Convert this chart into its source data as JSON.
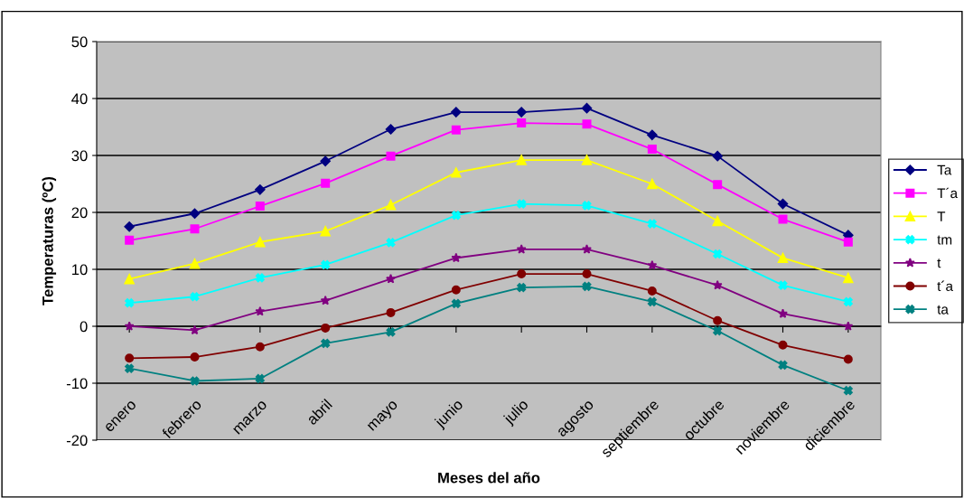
{
  "chart_data": {
    "type": "line",
    "xlabel": "Meses del año",
    "ylabel": "Temperaturas (ºC)",
    "categories": [
      "enero",
      "febrero",
      "marzo",
      "abril",
      "mayo",
      "junio",
      "julio",
      "agosto",
      "septiembre",
      "octubre",
      "noviembre",
      "diciembre"
    ],
    "ylim": [
      -20,
      50
    ],
    "yticks": [
      -20,
      -10,
      0,
      10,
      20,
      30,
      40,
      50
    ],
    "grid": "y",
    "legend": "right",
    "series": [
      {
        "name": "Ta",
        "color": "#000080",
        "marker": "diamond",
        "values": [
          17.5,
          19.8,
          24,
          29,
          34.6,
          37.6,
          37.6,
          38.3,
          33.6,
          29.9,
          21.5,
          16
        ]
      },
      {
        "name": "T´a",
        "color": "#ff00ff",
        "marker": "square",
        "values": [
          15.1,
          17.1,
          21.1,
          25.1,
          29.9,
          34.5,
          35.7,
          35.5,
          31.1,
          24.9,
          18.8,
          14.8
        ]
      },
      {
        "name": "T",
        "color": "#ffff00",
        "marker": "triangle",
        "values": [
          8.3,
          11.0,
          14.8,
          16.7,
          21.3,
          27.0,
          29.2,
          29.2,
          25.0,
          18.5,
          12.0,
          8.5
        ]
      },
      {
        "name": "tm",
        "color": "#00ffff",
        "marker": "cross",
        "values": [
          4.1,
          5.2,
          8.5,
          10.8,
          14.7,
          19.5,
          21.5,
          21.2,
          18.0,
          12.7,
          7.2,
          4.3
        ]
      },
      {
        "name": "t",
        "color": "#800080",
        "marker": "star",
        "values": [
          0,
          -0.7,
          2.6,
          4.5,
          8.3,
          12.0,
          13.5,
          13.5,
          10.7,
          7.2,
          2.2,
          0
        ]
      },
      {
        "name": "t´a",
        "color": "#800000",
        "marker": "circle",
        "values": [
          -5.6,
          -5.4,
          -3.6,
          -0.3,
          2.4,
          6.4,
          9.2,
          9.2,
          6.2,
          1.0,
          -3.3,
          -5.8
        ]
      },
      {
        "name": "ta",
        "color": "#008080",
        "marker": "cross",
        "values": [
          -7.4,
          -9.6,
          -9.2,
          -3.0,
          -1.0,
          4.0,
          6.8,
          7.0,
          4.3,
          -0.8,
          -6.8,
          -11.3
        ]
      }
    ]
  }
}
